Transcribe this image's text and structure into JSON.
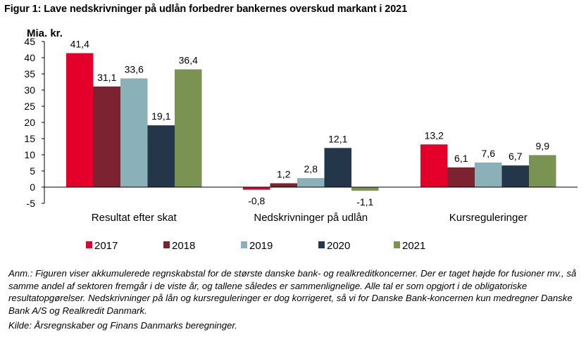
{
  "title": "Figur 1: Lave nedskrivninger på udlån forbedrer bankernes overskud markant i 2021",
  "note": "Anm.: Figuren viser akkumulerede regnskabstal for de største danske bank- og realkreditkoncerner. Der er taget højde for fusioner mv., så samme andel af sektoren fremgår i de viste år, og tallene således er sammenlignelige. Alle tal er som opgjort i de obligatoriske resultatopgørelser. Nedskrivninger på lån og kursreguleringer er dog korrigeret, så vi for Danske Bank-koncernen kun medregner Danske Bank A/S og Realkredit Danmark.",
  "source": "Kilde: Årsregnskaber og Finans Danmarks beregninger.",
  "chart_data": {
    "type": "bar",
    "title": "Figur 1: Lave nedskrivninger på udlån forbedrer bankernes overskud markant i 2021",
    "ylabel": "Mia. kr.",
    "ylim": [
      -5,
      45
    ],
    "yticks": [
      -5,
      0,
      5,
      10,
      15,
      20,
      25,
      30,
      35,
      40,
      45
    ],
    "categories": [
      "Resultat efter skat",
      "Nedskrivninger på udlån",
      "Kursreguleringer"
    ],
    "series": [
      {
        "name": "2017",
        "color": "#e4002b",
        "values": [
          41.4,
          -0.8,
          13.2
        ],
        "labels": [
          "41,4",
          "-0,8",
          "13,2"
        ]
      },
      {
        "name": "2018",
        "color": "#7d2230",
        "values": [
          31.1,
          1.2,
          6.1
        ],
        "labels": [
          "31,1",
          "1,2",
          "6,1"
        ]
      },
      {
        "name": "2019",
        "color": "#8ab0b8",
        "values": [
          33.6,
          2.8,
          7.6
        ],
        "labels": [
          "33,6",
          "2,8",
          "7,6"
        ]
      },
      {
        "name": "2020",
        "color": "#23364a",
        "values": [
          19.1,
          12.1,
          6.7
        ],
        "labels": [
          "19,1",
          "12,1",
          "6,7"
        ]
      },
      {
        "name": "2021",
        "color": "#7a9252",
        "values": [
          36.4,
          -1.1,
          9.9
        ],
        "labels": [
          "36,4",
          "-1,1",
          "9,9"
        ]
      }
    ],
    "grid": false,
    "legend_position": "bottom"
  }
}
